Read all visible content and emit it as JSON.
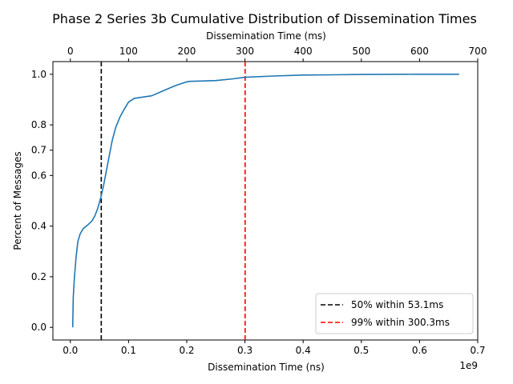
{
  "chart_data": {
    "type": "line",
    "title": "Phase 2 Series 3b Cumulative Distribution of Dissemination Times",
    "xlabel": "Dissemination Time (ns)",
    "x_offset_label": "1e9",
    "x_top_label": "Dissemination Time (ms)",
    "ylabel": "Percent of Messages",
    "xlim": [
      -0.03,
      0.7
    ],
    "ylim": [
      -0.05,
      1.05
    ],
    "x_ticks": [
      "0.0",
      "0.1",
      "0.2",
      "0.3",
      "0.4",
      "0.5",
      "0.6",
      "0.7"
    ],
    "x_top_ticks": [
      "0",
      "100",
      "200",
      "300",
      "400",
      "500",
      "600",
      "700"
    ],
    "y_ticks": [
      "0.0",
      "0.2",
      "0.4",
      "0.6",
      "0.7",
      "0.8",
      "1.0"
    ],
    "grid": false,
    "legend_position": "lower-right",
    "series": [
      {
        "color": "#1f77b4",
        "x": [
          0.004,
          0.005,
          0.007,
          0.01,
          0.013,
          0.017,
          0.022,
          0.03,
          0.037,
          0.042,
          0.047,
          0.052,
          0.057,
          0.062,
          0.067,
          0.072,
          0.078,
          0.085,
          0.092,
          0.1,
          0.11,
          0.125,
          0.14,
          0.16,
          0.18,
          0.2,
          0.205,
          0.25,
          0.28,
          0.3,
          0.35,
          0.4,
          0.45,
          0.5,
          0.6,
          0.668
        ],
        "y": [
          0.0,
          0.12,
          0.2,
          0.28,
          0.34,
          0.37,
          0.39,
          0.405,
          0.42,
          0.44,
          0.47,
          0.51,
          0.56,
          0.62,
          0.68,
          0.74,
          0.79,
          0.83,
          0.86,
          0.89,
          0.905,
          0.91,
          0.915,
          0.935,
          0.955,
          0.97,
          0.972,
          0.975,
          0.982,
          0.988,
          0.993,
          0.997,
          0.998,
          0.999,
          1.0,
          1.0
        ]
      }
    ],
    "markers": [
      {
        "x": 0.0531,
        "color": "#000000",
        "label": "50%  within 53.1ms"
      },
      {
        "x": 0.3003,
        "color": "#ff0000",
        "label": "99%  within 300.3ms"
      }
    ]
  }
}
